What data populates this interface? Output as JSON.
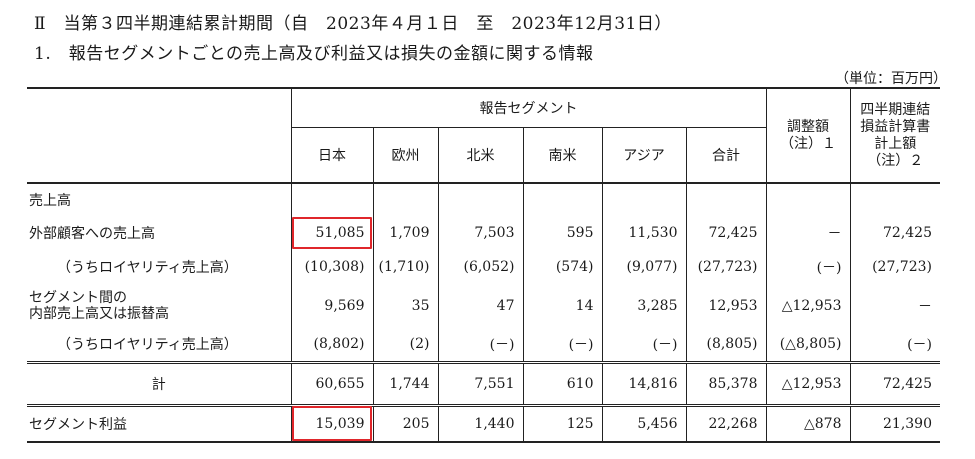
{
  "heading1": "Ⅱ　当第３四半期連結累計期間（自　2023年４月１日　至　2023年12月31日）",
  "heading2": "1.　報告セグメントごとの売上高及び利益又は損失の金額に関する情報",
  "unit": "（単位：百万円）",
  "header": {
    "group": "報告セグメント",
    "columns": [
      "日本",
      "欧州",
      "北米",
      "南米",
      "アジア",
      "合計"
    ],
    "adjustment_line1": "調整額",
    "adjustment_line2": "（注）１",
    "quarterly_line1": "四半期連結",
    "quarterly_line2": "損益計算書",
    "quarterly_line3": "計上額",
    "quarterly_line4": "（注）２"
  },
  "rows": {
    "sales_heading": "売上高",
    "external": {
      "label": "外部顧客への売上高",
      "values": [
        "51,085",
        "1,709",
        "7,503",
        "595",
        "11,530",
        "72,425",
        "－",
        "72,425"
      ]
    },
    "external_royalty": {
      "label": "（うちロイヤリティ売上高）",
      "values": [
        "(10,308)",
        "(1,710)",
        "(6,052)",
        "(574)",
        "(9,077)",
        "(27,723)",
        "(－)",
        "(27,723)"
      ]
    },
    "intersegment": {
      "label_line1": "セグメント間の",
      "label_line2": "内部売上高又は振替高",
      "values": [
        "9,569",
        "35",
        "47",
        "14",
        "3,285",
        "12,953",
        "△12,953",
        "－"
      ]
    },
    "intersegment_royalty": {
      "label": "（うちロイヤリティ売上高）",
      "values": [
        "(8,802)",
        "(2)",
        "(－)",
        "(－)",
        "(－)",
        "(8,805)",
        "(△8,805)",
        "(－)"
      ]
    },
    "total": {
      "label": "計",
      "values": [
        "60,655",
        "1,744",
        "7,551",
        "610",
        "14,816",
        "85,378",
        "△12,953",
        "72,425"
      ]
    },
    "profit": {
      "label": "セグメント利益",
      "values": [
        "15,039",
        "205",
        "1,440",
        "125",
        "5,456",
        "22,268",
        "△878",
        "21,390"
      ]
    }
  }
}
